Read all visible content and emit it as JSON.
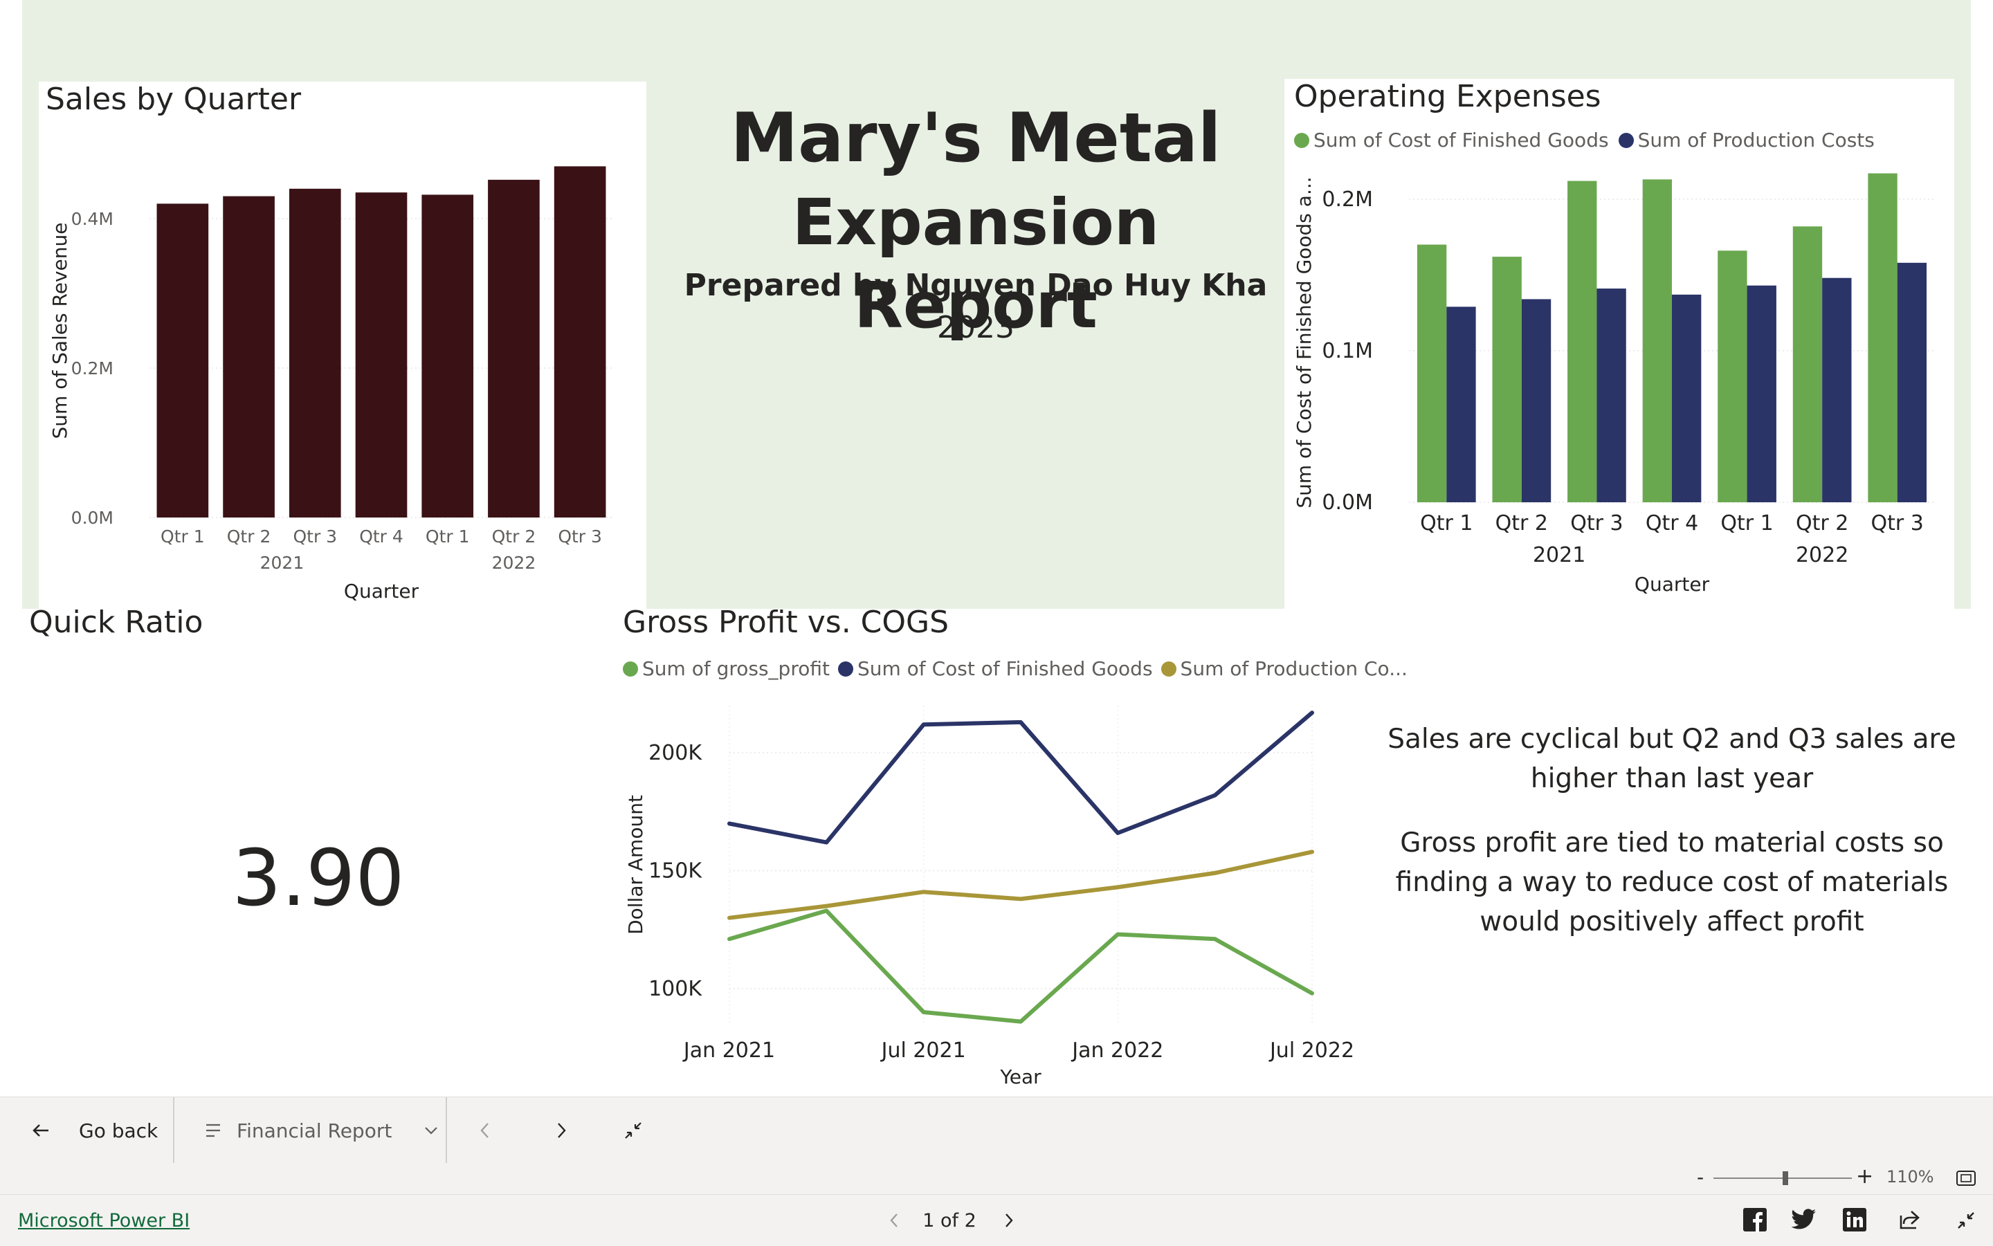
{
  "report": {
    "title_line1": "Mary's Metal",
    "title_line2": "Expansion Report",
    "prepared_by": "Prepared by Nguyen Dao Huy Kha",
    "year": "2023"
  },
  "quick_ratio": {
    "title": "Quick Ratio",
    "value": "3.90"
  },
  "notes": {
    "p1": "Sales are cyclical but Q2 and Q3 sales are higher than last year",
    "p2": "Gross profit are tied to material costs so finding a way to reduce cost of materials would positively affect profit"
  },
  "sales_chart": {
    "title": "Sales by Quarter",
    "ylabel": "Sum of Sales Revenue",
    "xlabel": "Quarter",
    "y_ticks": [
      "0.0M",
      "0.2M",
      "0.4M"
    ],
    "quarters": [
      "Qtr 1",
      "Qtr 2",
      "Qtr 3",
      "Qtr 4",
      "Qtr 1",
      "Qtr 2",
      "Qtr 3"
    ],
    "years": [
      "2021",
      "2022"
    ],
    "color": "#3a1215"
  },
  "opex_chart": {
    "title": "Operating Expenses",
    "ylabel": "Sum of Cost of Finished Goods a...",
    "xlabel": "Quarter",
    "y_ticks": [
      "0.0M",
      "0.1M",
      "0.2M"
    ],
    "quarters": [
      "Qtr 1",
      "Qtr 2",
      "Qtr 3",
      "Qtr 4",
      "Qtr 1",
      "Qtr 2",
      "Qtr 3"
    ],
    "years": [
      "2021",
      "2022"
    ],
    "legend": [
      {
        "label": "Sum of Cost of Finished Goods",
        "color": "#6aa84f"
      },
      {
        "label": "Sum of Production Costs",
        "color": "#2b3467"
      }
    ]
  },
  "gp_chart": {
    "title": "Gross Profit vs. COGS",
    "ylabel": "Dollar Amount",
    "xlabel": "Year",
    "y_ticks": [
      "100K",
      "150K",
      "200K"
    ],
    "x_ticks": [
      "Jan 2021",
      "Jul 2021",
      "Jan 2022",
      "Jul 2022"
    ],
    "legend": [
      {
        "label": "Sum of gross_profit",
        "color": "#6aa84f"
      },
      {
        "label": "Sum of Cost of Finished Goods",
        "color": "#2b3467"
      },
      {
        "label": "Sum of Production Co...",
        "color": "#a89638"
      }
    ]
  },
  "chart_data": [
    {
      "type": "bar",
      "title": "Sales by Quarter",
      "xlabel": "Quarter",
      "ylabel": "Sum of Sales Revenue",
      "categories": [
        "2021 Qtr 1",
        "2021 Qtr 2",
        "2021 Qtr 3",
        "2021 Qtr 4",
        "2022 Qtr 1",
        "2022 Qtr 2",
        "2022 Qtr 3"
      ],
      "series": [
        {
          "name": "Sum of Sales Revenue",
          "values": [
            0.42,
            0.43,
            0.44,
            0.435,
            0.432,
            0.452,
            0.47
          ]
        }
      ],
      "ylim": [
        0,
        0.5
      ],
      "units": "M"
    },
    {
      "type": "bar",
      "title": "Operating Expenses",
      "xlabel": "Quarter",
      "ylabel": "Sum of Cost of Finished Goods a...",
      "categories": [
        "2021 Qtr 1",
        "2021 Qtr 2",
        "2021 Qtr 3",
        "2021 Qtr 4",
        "2022 Qtr 1",
        "2022 Qtr 2",
        "2022 Qtr 3"
      ],
      "series": [
        {
          "name": "Sum of Cost of Finished Goods",
          "values": [
            0.17,
            0.162,
            0.212,
            0.213,
            0.166,
            0.182,
            0.217
          ]
        },
        {
          "name": "Sum of Production Costs",
          "values": [
            0.129,
            0.134,
            0.141,
            0.137,
            0.143,
            0.148,
            0.158
          ]
        }
      ],
      "ylim": [
        0,
        0.22
      ],
      "units": "M"
    },
    {
      "type": "line",
      "title": "Gross Profit vs. COGS",
      "xlabel": "Year",
      "ylabel": "Dollar Amount",
      "x": [
        "Jan 2021",
        "Apr 2021",
        "Jul 2021",
        "Oct 2021",
        "Jan 2022",
        "Apr 2022",
        "Jul 2022"
      ],
      "series": [
        {
          "name": "Sum of gross_profit",
          "values": [
            121,
            133,
            90,
            86,
            123,
            121,
            98
          ]
        },
        {
          "name": "Sum of Cost of Finished Goods",
          "values": [
            170,
            162,
            212,
            213,
            166,
            182,
            217
          ]
        },
        {
          "name": "Sum of Production Costs",
          "values": [
            130,
            135,
            141,
            138,
            143,
            149,
            158
          ]
        }
      ],
      "ylim": [
        85,
        220
      ],
      "units": "K"
    }
  ],
  "nav": {
    "go_back": "Go back",
    "page_menu": "Financial Report"
  },
  "zoom": {
    "minus": "-",
    "plus": "+",
    "level": "110%",
    "slider_fraction": 0.52
  },
  "footer": {
    "brand_link": "Microsoft Power BI",
    "page_indicator": "1 of 2"
  }
}
